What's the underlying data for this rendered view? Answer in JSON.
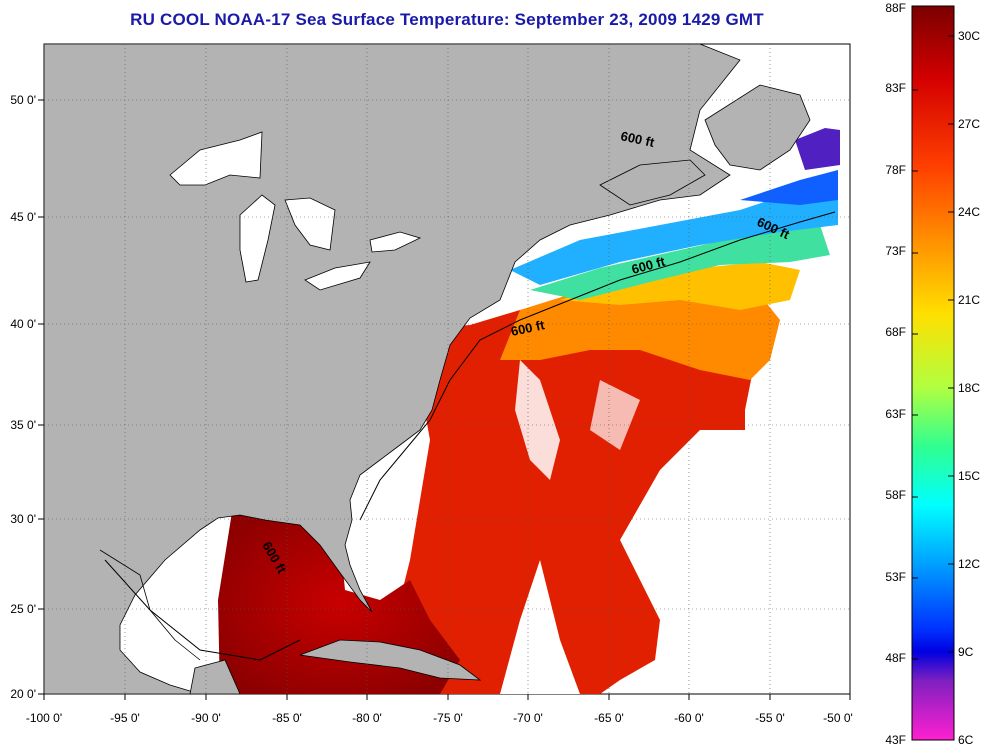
{
  "title": "RU COOL  NOAA-17  Sea Surface Temperature:  September 23, 2009 1429 GMT",
  "map": {
    "lon_range": [
      -100,
      -50
    ],
    "lat_range": [
      20,
      52.5
    ],
    "lon_ticks": [
      "-100 0'",
      "-95 0'",
      "-90 0'",
      "-85 0'",
      "-80 0'",
      "-75 0'",
      "-70 0'",
      "-65 0'",
      "-60 0'",
      "-55 0'",
      "-50 0'"
    ],
    "lat_ticks": [
      "20 0'",
      "25 0'",
      "30 0'",
      "35 0'",
      "40 0'",
      "45 0'",
      "50 0'"
    ],
    "isobath_label": "600 ft",
    "colors": {
      "land": "#b3b3b3",
      "no_data": "#ffffff",
      "coast": "#000000",
      "grid": "#555555"
    }
  },
  "colorbar": {
    "fahrenheit_labels": [
      "88F",
      "83F",
      "78F",
      "73F",
      "68F",
      "63F",
      "58F",
      "53F",
      "48F",
      "43F"
    ],
    "celsius_labels": [
      "30C",
      "27C",
      "24C",
      "21C",
      "18C",
      "15C",
      "12C",
      "9C",
      "6C"
    ],
    "gradient": [
      "#7a0000",
      "#d40000",
      "#ff4000",
      "#ff9000",
      "#ffe000",
      "#b0ff40",
      "#30ff90",
      "#00ffff",
      "#00a0ff",
      "#0030ff",
      "#0000e0",
      "#8020c0",
      "#ff20d0"
    ]
  }
}
